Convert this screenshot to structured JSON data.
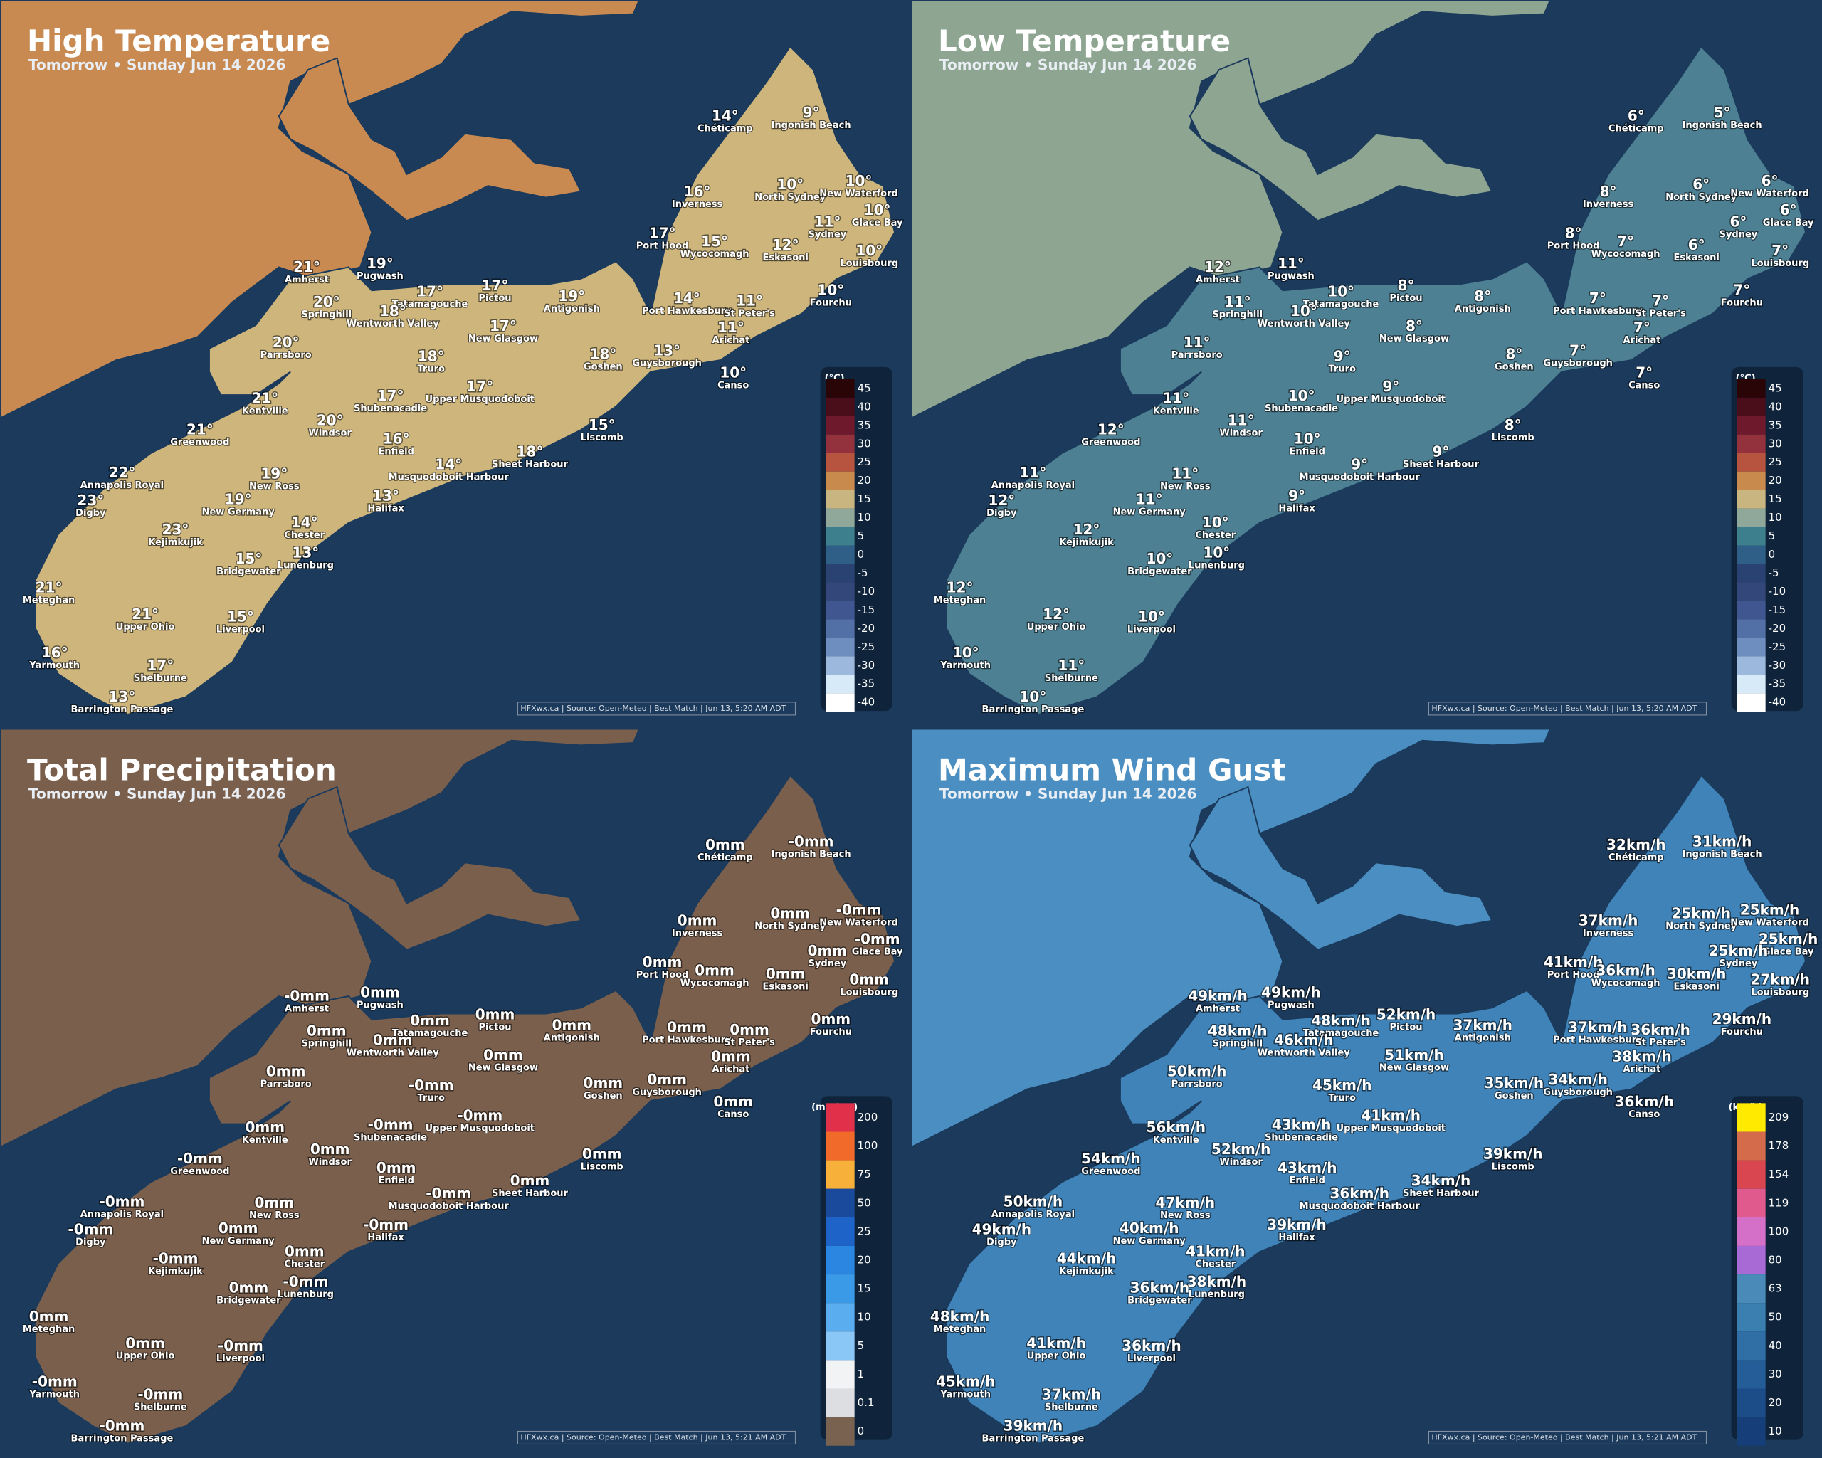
{
  "cities": [
    "Chéticamp",
    "Ingonish Beach",
    "Inverness",
    "North Sydney",
    "New Waterford",
    "Glace Bay",
    "Sydney",
    "Port Hood",
    "Wycocomagh",
    "Eskasoni",
    "Louisbourg",
    "Amherst",
    "Pugwash",
    "Tatamagouche",
    "Pictou",
    "Antigonish",
    "Springhill",
    "Wentworth Valley",
    "Port Hawkesbury",
    "St Peter's",
    "Fourchu",
    "New Glasgow",
    "Arichat",
    "Parrsboro",
    "Truro",
    "Goshen",
    "Guysborough",
    "Canso",
    "Kentville",
    "Shubenacadie",
    "Upper Musquodoboit",
    "Windsor",
    "Greenwood",
    "Enfield",
    "Liscomb",
    "Sheet Harbour",
    "Annapolis Royal",
    "New Ross",
    "Musquodoboit Harbour",
    "Digby",
    "New Germany",
    "Halifax",
    "Kejimkujik",
    "Chester",
    "Lunenburg",
    "Bridgewater",
    "Meteghan",
    "Upper Ohio",
    "Liverpool",
    "Yarmouth",
    "Shelburne",
    "Barrington Passage"
  ],
  "panels": [
    {
      "title": "High Temperature",
      "subtitle": "Tomorrow • Sunday Jun 14 2026",
      "values": [
        "14°",
        "9°",
        "16°",
        "10°",
        "10°",
        "10°",
        "11°",
        "17°",
        "15°",
        "12°",
        "10°",
        "21°",
        "19°",
        "17°",
        "17°",
        "19°",
        "20°",
        "18°",
        "14°",
        "11°",
        "10°",
        "17°",
        "11°",
        "20°",
        "18°",
        "18°",
        "13°",
        "10°",
        "21°",
        "17°",
        "17°",
        "20°",
        "21°",
        "16°",
        "15°",
        "18°",
        "22°",
        "19°",
        "14°",
        "23°",
        "19°",
        "13°",
        "23°",
        "14°",
        "13°",
        "15°",
        "21°",
        "21°",
        "15°",
        "16°",
        "17°",
        "13°"
      ],
      "legend": {
        "unit": "(°C)",
        "ticks": [
          45,
          40,
          35,
          30,
          25,
          20,
          15,
          10,
          5,
          0,
          -5,
          -10,
          -15,
          -20,
          -25,
          -30,
          -35,
          -40
        ]
      },
      "source": "HFXwx.ca | Source: Open-Meteo | Best Match | Jun 13, 5:20 AM ADT"
    },
    {
      "title": "Low Temperature",
      "subtitle": "Tomorrow • Sunday Jun 14 2026",
      "values": [
        "6°",
        "5°",
        "8°",
        "6°",
        "6°",
        "6°",
        "6°",
        "8°",
        "7°",
        "6°",
        "7°",
        "12°",
        "11°",
        "10°",
        "8°",
        "8°",
        "11°",
        "10°",
        "7°",
        "7°",
        "7°",
        "8°",
        "7°",
        "11°",
        "9°",
        "8°",
        "7°",
        "7°",
        "11°",
        "10°",
        "9°",
        "11°",
        "12°",
        "10°",
        "8°",
        "9°",
        "11°",
        "11°",
        "9°",
        "12°",
        "11°",
        "9°",
        "12°",
        "10°",
        "10°",
        "10°",
        "12°",
        "12°",
        "10°",
        "10°",
        "11°",
        "10°"
      ],
      "legend": {
        "unit": "(°C)",
        "ticks": [
          45,
          40,
          35,
          30,
          25,
          20,
          15,
          10,
          5,
          0,
          -5,
          -10,
          -15,
          -20,
          -25,
          -30,
          -35,
          -40
        ]
      },
      "source": "HFXwx.ca | Source: Open-Meteo | Best Match | Jun 13, 5:20 AM ADT"
    },
    {
      "title": "Total Precipitation",
      "subtitle": "Tomorrow • Sunday Jun 14 2026",
      "values": [
        "0mm",
        "-0mm",
        "0mm",
        "0mm",
        "-0mm",
        "-0mm",
        "0mm",
        "0mm",
        "0mm",
        "0mm",
        "0mm",
        "-0mm",
        "0mm",
        "0mm",
        "0mm",
        "0mm",
        "0mm",
        "0mm",
        "0mm",
        "0mm",
        "0mm",
        "0mm",
        "0mm",
        "0mm",
        "-0mm",
        "0mm",
        "0mm",
        "0mm",
        "0mm",
        "-0mm",
        "-0mm",
        "0mm",
        "-0mm",
        "0mm",
        "0mm",
        "0mm",
        "-0mm",
        "0mm",
        "-0mm",
        "-0mm",
        "0mm",
        "-0mm",
        "-0mm",
        "0mm",
        "-0mm",
        "0mm",
        "0mm",
        "0mm",
        "-0mm",
        "-0mm",
        "-0mm",
        "-0mm"
      ],
      "legend": {
        "unit": "(mm/cm)",
        "ticks": [
          200,
          100,
          75,
          50,
          25,
          20,
          15,
          10,
          5,
          1,
          0.1,
          0
        ]
      },
      "source": "HFXwx.ca | Source: Open-Meteo | Best Match | Jun 13, 5:21 AM ADT"
    },
    {
      "title": "Maximum Wind Gust",
      "subtitle": "Tomorrow • Sunday Jun 14 2026",
      "values": [
        "32km/h",
        "31km/h",
        "37km/h",
        "25km/h",
        "25km/h",
        "25km/h",
        "25km/h",
        "41km/h",
        "36km/h",
        "30km/h",
        "27km/h",
        "49km/h",
        "49km/h",
        "48km/h",
        "52km/h",
        "37km/h",
        "48km/h",
        "46km/h",
        "37km/h",
        "36km/h",
        "29km/h",
        "51km/h",
        "38km/h",
        "50km/h",
        "45km/h",
        "35km/h",
        "34km/h",
        "36km/h",
        "56km/h",
        "43km/h",
        "41km/h",
        "52km/h",
        "54km/h",
        "43km/h",
        "39km/h",
        "34km/h",
        "50km/h",
        "47km/h",
        "36km/h",
        "49km/h",
        "40km/h",
        "39km/h",
        "44km/h",
        "41km/h",
        "38km/h",
        "36km/h",
        "48km/h",
        "41km/h",
        "36km/h",
        "45km/h",
        "37km/h",
        "39km/h"
      ],
      "legend": {
        "unit": "(km/h)",
        "ticks": [
          209,
          178,
          154,
          119,
          100,
          80,
          63,
          50,
          40,
          30,
          20,
          10
        ]
      },
      "source": "HFXwx.ca | Source: Open-Meteo | Best Match | Jun 13, 5:21 AM ADT"
    }
  ]
}
